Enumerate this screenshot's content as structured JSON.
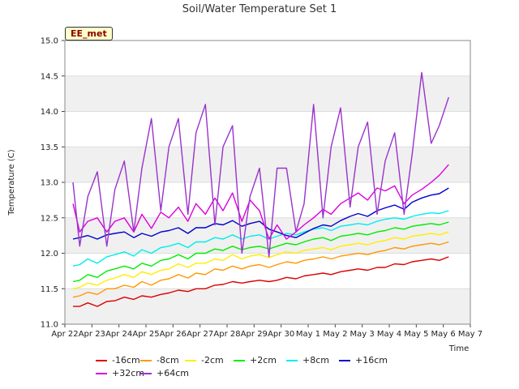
{
  "station_badge": "EE_met",
  "chart_data": {
    "type": "line",
    "title": "Soil/Water Temperature Set 1",
    "xlabel": "Time",
    "ylabel": "Temperature (C)",
    "ylim": [
      11.0,
      15.0
    ],
    "yticks": [
      "11.0",
      "11.5",
      "12.0",
      "12.5",
      "13.0",
      "13.5",
      "14.0",
      "14.5",
      "15.0"
    ],
    "xlim": [
      0,
      15
    ],
    "xtick_labels": [
      "Apr 22",
      "Apr 23",
      "Apr 24",
      "Apr 25",
      "Apr 26",
      "Apr 27",
      "Apr 28",
      "Apr 29",
      "Apr 30",
      "May 1",
      "May 2",
      "May 3",
      "May 4",
      "May 5",
      "May 6",
      "May 7"
    ],
    "grid": true,
    "legend_position": "bottom",
    "x": [
      0.3,
      0.55,
      0.85,
      1.2,
      1.55,
      1.85,
      2.2,
      2.55,
      2.85,
      3.2,
      3.55,
      3.85,
      4.2,
      4.55,
      4.85,
      5.2,
      5.55,
      5.85,
      6.2,
      6.55,
      6.85,
      7.2,
      7.55,
      7.85,
      8.2,
      8.55,
      8.85,
      9.2,
      9.55,
      9.85,
      10.2,
      10.55,
      10.85,
      11.2,
      11.55,
      11.85,
      12.2,
      12.55,
      12.85,
      13.2,
      13.55,
      13.85,
      14.2
    ],
    "series": [
      {
        "name": "-16cm",
        "color": "#dd0000",
        "values": [
          11.25,
          11.25,
          11.3,
          11.25,
          11.32,
          11.33,
          11.38,
          11.35,
          11.4,
          11.38,
          11.42,
          11.44,
          11.48,
          11.46,
          11.5,
          11.5,
          11.55,
          11.56,
          11.6,
          11.58,
          11.6,
          11.62,
          11.6,
          11.62,
          11.66,
          11.64,
          11.68,
          11.7,
          11.72,
          11.7,
          11.74,
          11.76,
          11.78,
          11.76,
          11.8,
          11.8,
          11.85,
          11.84,
          11.88,
          11.9,
          11.92,
          11.9,
          11.95
        ]
      },
      {
        "name": "-8cm",
        "color": "#ff9900",
        "values": [
          11.38,
          11.4,
          11.45,
          11.42,
          11.5,
          11.5,
          11.55,
          11.52,
          11.6,
          11.55,
          11.62,
          11.64,
          11.7,
          11.65,
          11.72,
          11.7,
          11.78,
          11.76,
          11.82,
          11.78,
          11.82,
          11.84,
          11.8,
          11.84,
          11.88,
          11.86,
          11.9,
          11.92,
          11.95,
          11.92,
          11.96,
          11.98,
          12.0,
          11.98,
          12.02,
          12.04,
          12.08,
          12.06,
          12.1,
          12.12,
          12.14,
          12.12,
          12.16
        ]
      },
      {
        "name": "-2cm",
        "color": "#ffee00",
        "values": [
          11.5,
          11.52,
          11.58,
          11.55,
          11.62,
          11.65,
          11.7,
          11.66,
          11.74,
          11.7,
          11.76,
          11.78,
          11.85,
          11.8,
          11.86,
          11.86,
          11.92,
          11.9,
          11.98,
          11.92,
          11.96,
          11.98,
          11.94,
          11.98,
          12.02,
          12.0,
          12.04,
          12.06,
          12.08,
          12.05,
          12.1,
          12.12,
          12.14,
          12.12,
          12.16,
          12.18,
          12.22,
          12.2,
          12.24,
          12.26,
          12.28,
          12.26,
          12.3
        ]
      },
      {
        "name": "+2cm",
        "color": "#00ee00",
        "values": [
          11.6,
          11.62,
          11.7,
          11.66,
          11.75,
          11.78,
          11.82,
          11.78,
          11.86,
          11.82,
          11.9,
          11.92,
          11.98,
          11.92,
          12.0,
          12.0,
          12.06,
          12.04,
          12.1,
          12.05,
          12.08,
          12.1,
          12.06,
          12.1,
          12.14,
          12.12,
          12.16,
          12.2,
          12.22,
          12.18,
          12.24,
          12.26,
          12.28,
          12.26,
          12.3,
          12.32,
          12.36,
          12.34,
          12.38,
          12.4,
          12.42,
          12.4,
          12.44
        ]
      },
      {
        "name": "+8cm",
        "color": "#00eeee",
        "values": [
          11.82,
          11.84,
          11.92,
          11.86,
          11.95,
          11.98,
          12.02,
          11.96,
          12.05,
          12.0,
          12.08,
          12.1,
          12.14,
          12.08,
          12.16,
          12.16,
          12.22,
          12.2,
          12.26,
          12.2,
          12.24,
          12.26,
          12.2,
          12.24,
          12.28,
          12.26,
          12.3,
          12.34,
          12.36,
          12.32,
          12.38,
          12.4,
          12.42,
          12.4,
          12.45,
          12.48,
          12.5,
          12.48,
          12.52,
          12.55,
          12.57,
          12.56,
          12.6
        ]
      },
      {
        "name": "+16cm",
        "color": "#0000cc",
        "values": [
          12.2,
          12.22,
          12.25,
          12.2,
          12.26,
          12.28,
          12.3,
          12.22,
          12.28,
          12.24,
          12.3,
          12.32,
          12.36,
          12.28,
          12.36,
          12.36,
          12.42,
          12.4,
          12.46,
          12.38,
          12.42,
          12.45,
          12.34,
          12.3,
          12.25,
          12.22,
          12.28,
          12.35,
          12.4,
          12.38,
          12.46,
          12.52,
          12.56,
          12.52,
          12.6,
          12.64,
          12.68,
          12.62,
          12.72,
          12.78,
          12.82,
          12.84,
          12.92
        ]
      },
      {
        "name": "+32cm",
        "color": "#dd00dd",
        "values": [
          12.7,
          12.3,
          12.45,
          12.5,
          12.3,
          12.45,
          12.5,
          12.3,
          12.55,
          12.35,
          12.58,
          12.5,
          12.65,
          12.45,
          12.7,
          12.55,
          12.78,
          12.6,
          12.85,
          12.45,
          12.75,
          12.6,
          12.2,
          12.4,
          12.2,
          12.3,
          12.4,
          12.5,
          12.62,
          12.55,
          12.7,
          12.78,
          12.85,
          12.75,
          12.92,
          12.88,
          12.95,
          12.7,
          12.82,
          12.9,
          13.0,
          13.1,
          13.25
        ]
      },
      {
        "name": "+64cm",
        "color": "#9933cc",
        "values": [
          13.0,
          12.1,
          12.8,
          13.15,
          12.1,
          12.9,
          13.3,
          12.3,
          13.2,
          13.9,
          12.6,
          13.5,
          13.9,
          12.55,
          13.7,
          14.1,
          12.4,
          13.5,
          13.8,
          12.0,
          12.8,
          13.2,
          11.95,
          13.2,
          13.2,
          12.3,
          12.7,
          14.1,
          12.5,
          13.5,
          14.05,
          12.65,
          13.5,
          13.85,
          12.55,
          13.3,
          13.7,
          12.55,
          13.4,
          14.55,
          13.55,
          13.8,
          14.2
        ]
      }
    ]
  }
}
